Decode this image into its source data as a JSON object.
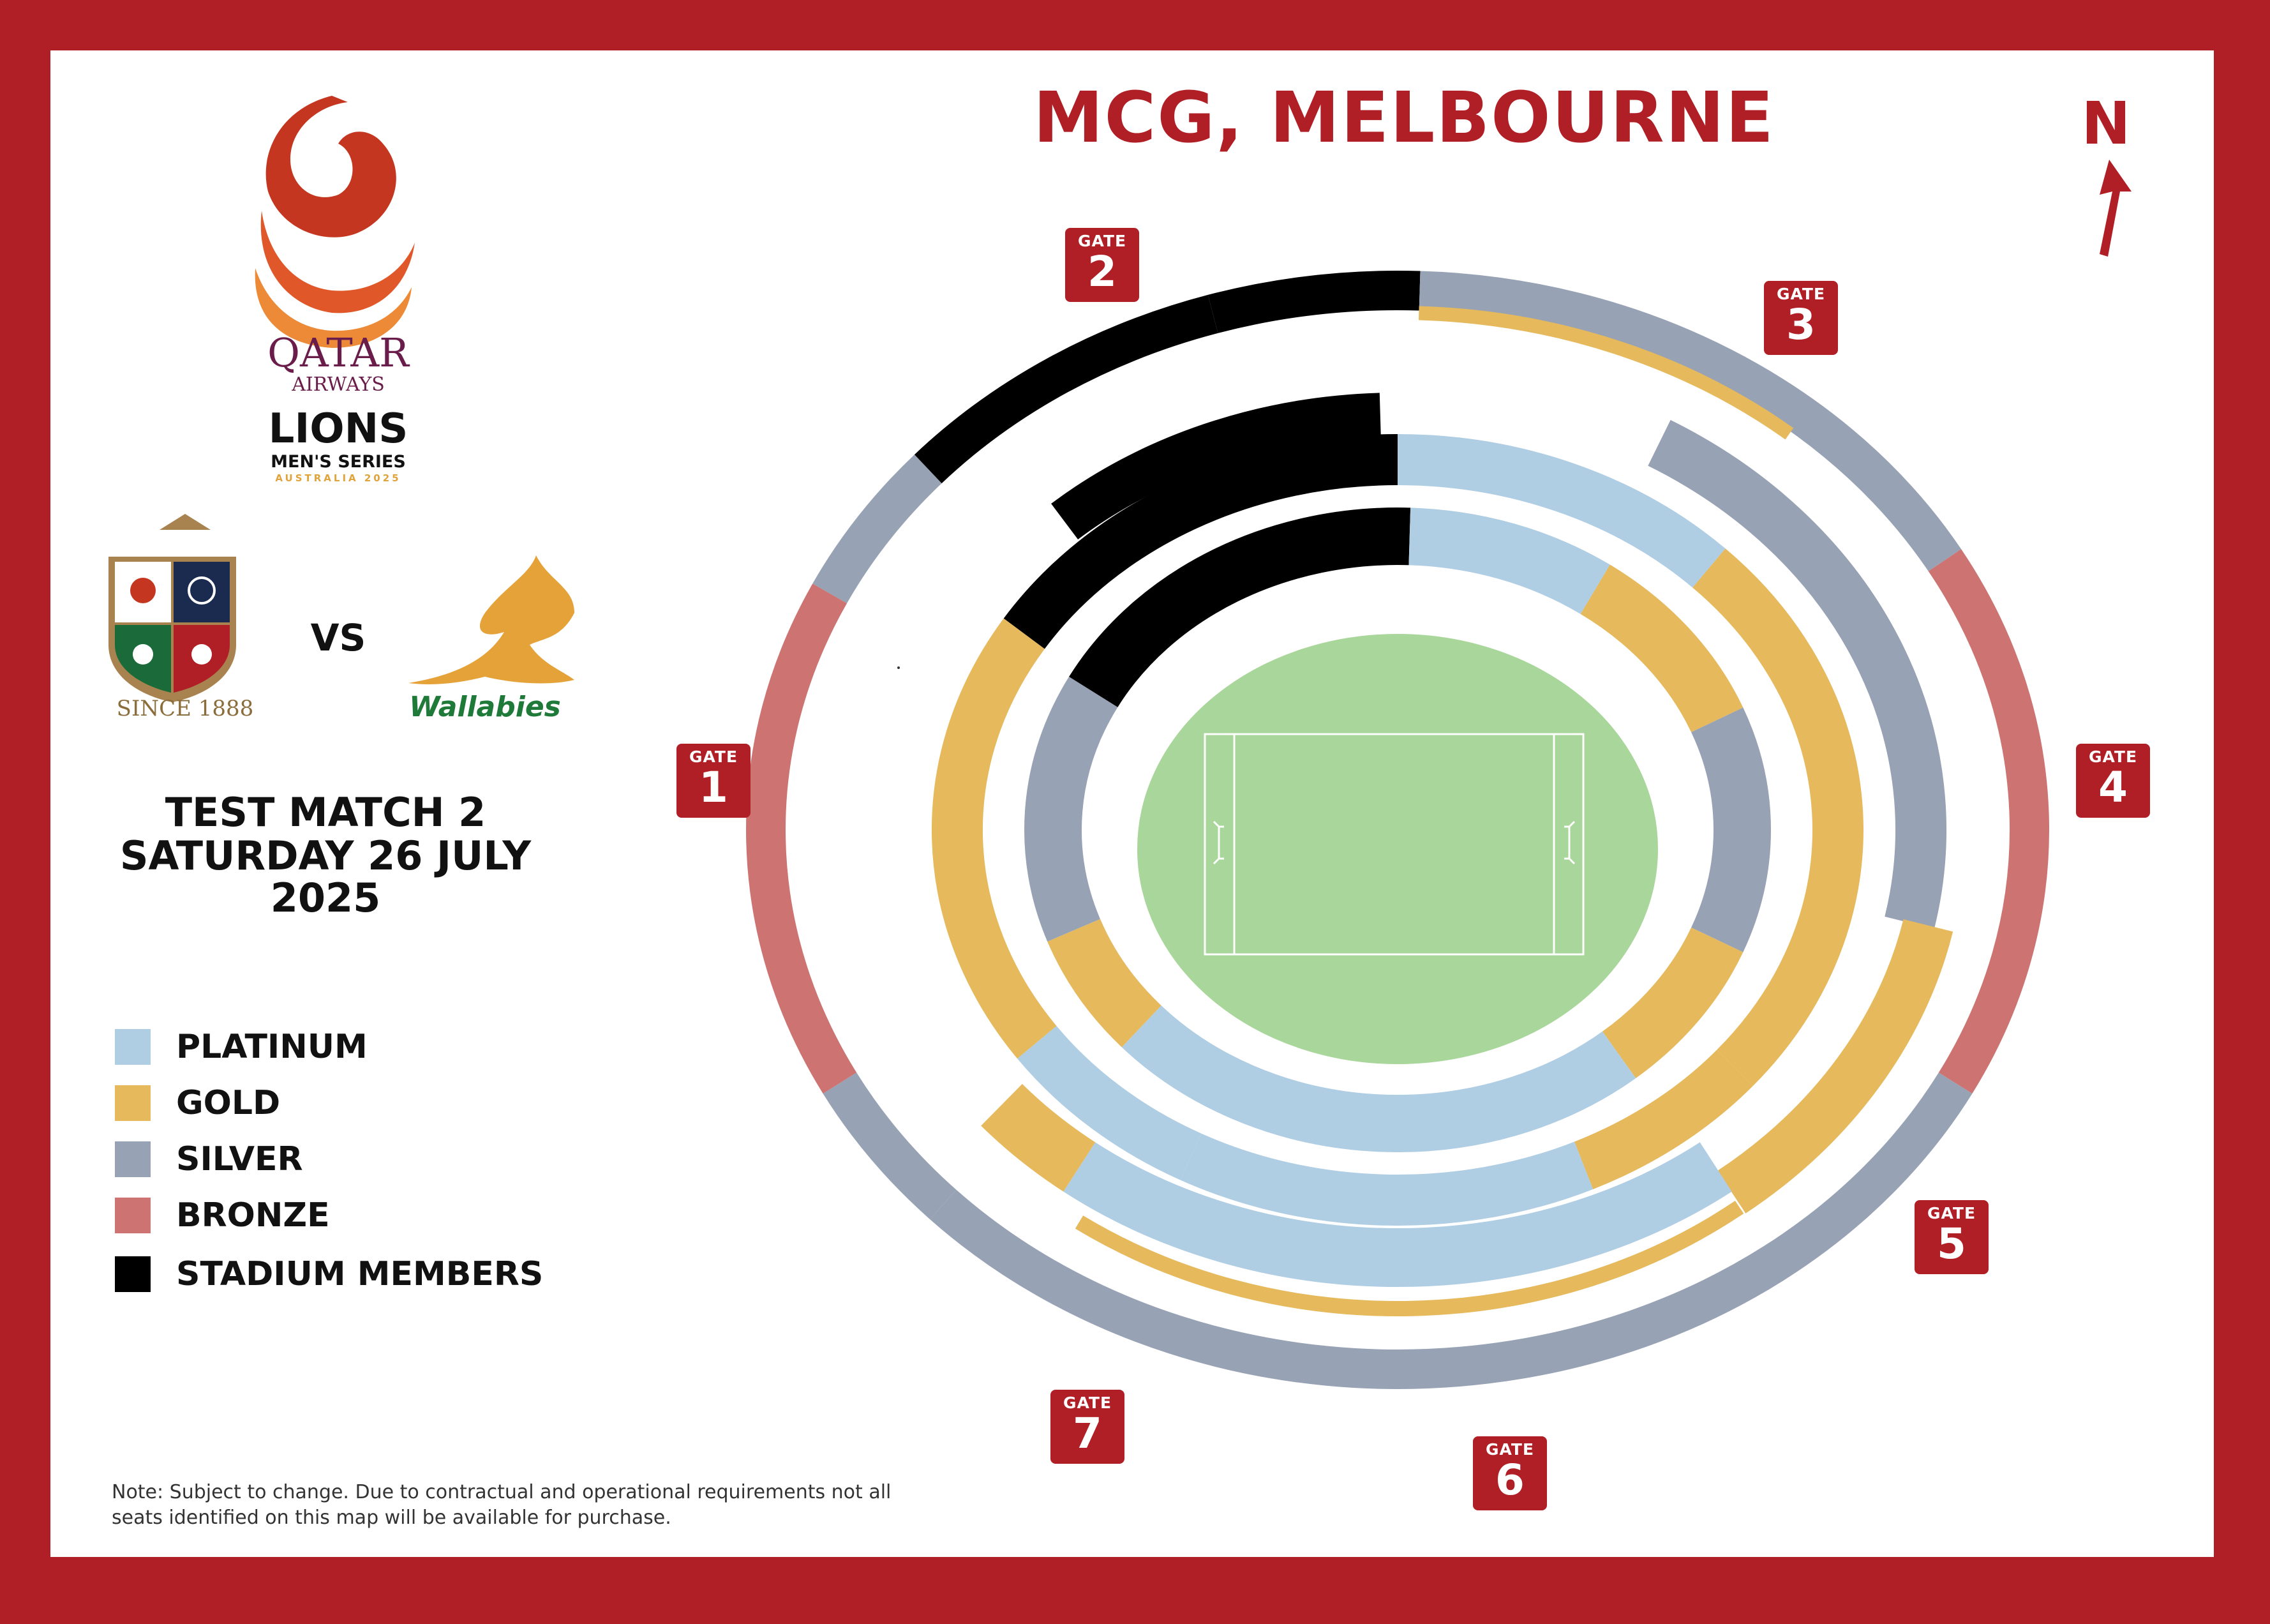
{
  "title": "MCG, MELBOURNE",
  "north": "N",
  "brand": {
    "qatar": "QATAR",
    "airways": "AIRWAYS",
    "lions": "LIONS",
    "series": "MEN'S SERIES",
    "country": "AUSTRALIA 2025",
    "since": "SINCE 1888",
    "wallabies": "Wallabies"
  },
  "vs": "VS",
  "match": {
    "title": "TEST MATCH 2",
    "date": "SATURDAY 26 JULY 2025"
  },
  "legend": [
    {
      "label": "PLATINUM",
      "color": "#afcde3"
    },
    {
      "label": "GOLD",
      "color": "#e5b95c"
    },
    {
      "label": "SILVER",
      "color": "#97a2b4"
    },
    {
      "label": "BRONZE",
      "color": "#cd7472"
    },
    {
      "label": "STADIUM MEMBERS",
      "color": "#000000"
    }
  ],
  "gates": [
    {
      "label": "GATE",
      "number": "1"
    },
    {
      "label": "GATE",
      "number": "2"
    },
    {
      "label": "GATE",
      "number": "3"
    },
    {
      "label": "GATE",
      "number": "4"
    },
    {
      "label": "GATE",
      "number": "5"
    },
    {
      "label": "GATE",
      "number": "6"
    },
    {
      "label": "GATE",
      "number": "7"
    }
  ],
  "note": "Note: Subject to change. Due to contractual and operational requirements not all seats identified on this map will be available for purchase.",
  "colors": {
    "frame": "#b01f26",
    "field": "#a9d69a",
    "platinum": "#afcde3",
    "gold": "#e5b95c",
    "silver": "#97a2b4",
    "bronze": "#cd7472",
    "members": "#000000"
  }
}
